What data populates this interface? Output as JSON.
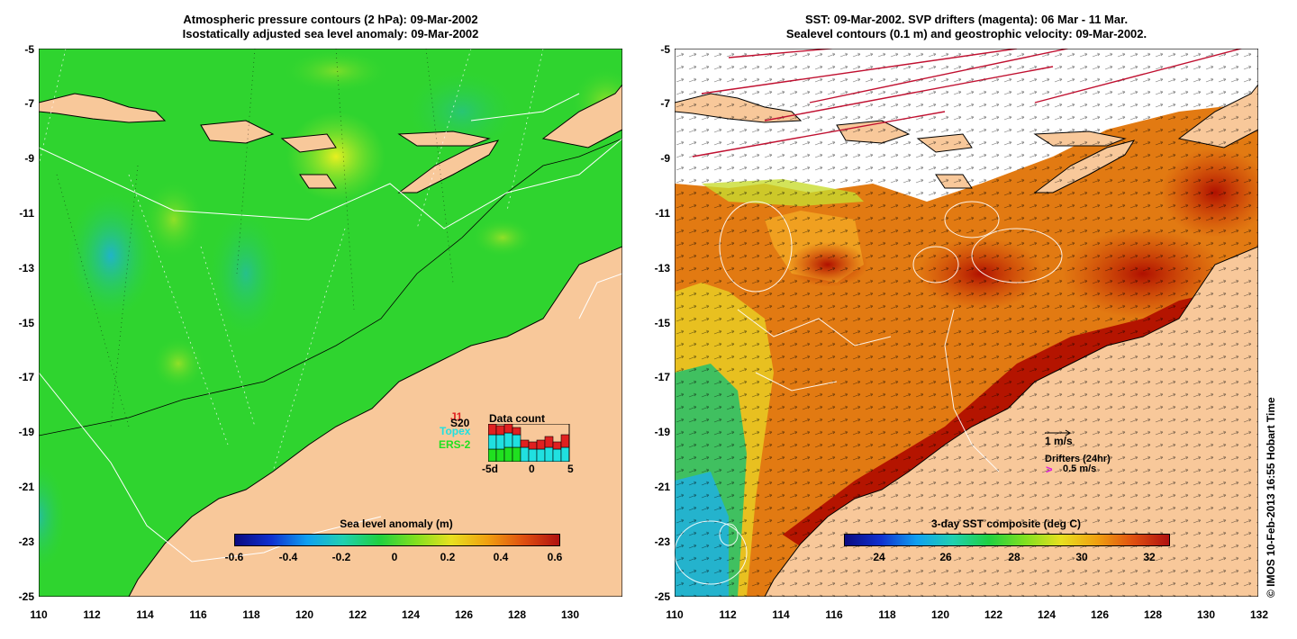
{
  "left_panel": {
    "title_line1": "Atmospheric pressure contours (2 hPa): 09-Mar-2002",
    "title_line2": "Isostatically adjusted sea level anomaly: 09-Mar-2002",
    "y_ticks": [
      "-5",
      "-7",
      "-9",
      "-11",
      "-13",
      "-15",
      "-17",
      "-19",
      "-21",
      "-23",
      "-25"
    ],
    "x_ticks": [
      "110",
      "112",
      "114",
      "116",
      "118",
      "120",
      "122",
      "124",
      "126",
      "128",
      "130"
    ],
    "colorbar": {
      "title": "Sea level anomaly (m)",
      "ticks": [
        "-0.6",
        "-0.4",
        "-0.2",
        "0",
        "0.2",
        "0.4",
        "0.6"
      ]
    },
    "data_count": {
      "title": "Data count",
      "labels": [
        "J1",
        "S20",
        "Topex",
        "ERS-2"
      ],
      "axis_labels": [
        "-5d",
        "0",
        "5"
      ]
    }
  },
  "right_panel": {
    "title_line1": "SST: 09-Mar-2002. SVP drifters (magenta): 06 Mar - 11 Mar.",
    "title_line2": "Sealevel contours (0.1 m) and geostrophic velocity: 09-Mar-2002.",
    "y_ticks": [
      "-5",
      "-7",
      "-9",
      "-11",
      "-13",
      "-15",
      "-17",
      "-19",
      "-21",
      "-23",
      "-25"
    ],
    "x_ticks": [
      "110",
      "112",
      "114",
      "116",
      "118",
      "120",
      "122",
      "124",
      "126",
      "128",
      "130",
      "132"
    ],
    "colorbar": {
      "title": "3-day SST composite (deg C)",
      "ticks": [
        "24",
        "26",
        "28",
        "30",
        "32"
      ]
    },
    "legend": {
      "velocity_label": "1 m/s",
      "drifters_label": "Drifters (24hr)",
      "drifter_speed_label": "0.5 m/s"
    }
  },
  "credit": "© IMOS 10-Feb-2013 16:55 Hobart Time",
  "colors": {
    "land": "#f8c89a",
    "ocean_green": "#2fd62f",
    "sst_orange": "#e87a10",
    "sst_red": "#b81400"
  }
}
